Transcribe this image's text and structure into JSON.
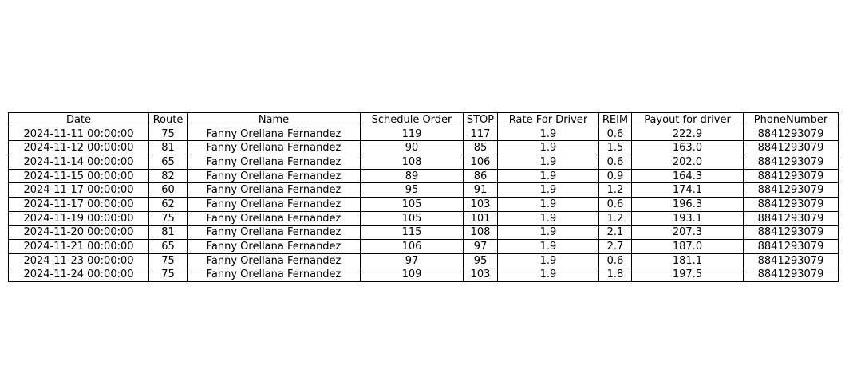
{
  "chart_data": {
    "type": "table",
    "columns": [
      "Date",
      "Route",
      "Name",
      "Schedule Order",
      "STOP",
      "Rate For Driver",
      "REIM",
      "Payout for driver",
      "PhoneNumber"
    ],
    "rows": [
      [
        "2024-11-11 00:00:00",
        "75",
        "Fanny Orellana Fernandez",
        "119",
        "117",
        "1.9",
        "0.6",
        "222.9",
        "8841293079"
      ],
      [
        "2024-11-12 00:00:00",
        "81",
        "Fanny Orellana Fernandez",
        "90",
        "85",
        "1.9",
        "1.5",
        "163.0",
        "8841293079"
      ],
      [
        "2024-11-14 00:00:00",
        "65",
        "Fanny Orellana Fernandez",
        "108",
        "106",
        "1.9",
        "0.6",
        "202.0",
        "8841293079"
      ],
      [
        "2024-11-15 00:00:00",
        "82",
        "Fanny Orellana Fernandez",
        "89",
        "86",
        "1.9",
        "0.9",
        "164.3",
        "8841293079"
      ],
      [
        "2024-11-17 00:00:00",
        "60",
        "Fanny Orellana Fernandez",
        "95",
        "91",
        "1.9",
        "1.2",
        "174.1",
        "8841293079"
      ],
      [
        "2024-11-17 00:00:00",
        "62",
        "Fanny Orellana Fernandez",
        "105",
        "103",
        "1.9",
        "0.6",
        "196.3",
        "8841293079"
      ],
      [
        "2024-11-19 00:00:00",
        "75",
        "Fanny Orellana Fernandez",
        "105",
        "101",
        "1.9",
        "1.2",
        "193.1",
        "8841293079"
      ],
      [
        "2024-11-20 00:00:00",
        "81",
        "Fanny Orellana Fernandez",
        "115",
        "108",
        "1.9",
        "2.1",
        "207.3",
        "8841293079"
      ],
      [
        "2024-11-21 00:00:00",
        "65",
        "Fanny Orellana Fernandez",
        "106",
        "97",
        "1.9",
        "2.7",
        "187.0",
        "8841293079"
      ],
      [
        "2024-11-23 00:00:00",
        "75",
        "Fanny Orellana Fernandez",
        "97",
        "95",
        "1.9",
        "0.6",
        "181.1",
        "8841293079"
      ],
      [
        "2024-11-24 00:00:00",
        "75",
        "Fanny Orellana Fernandez",
        "109",
        "103",
        "1.9",
        "1.8",
        "197.5",
        "8841293079"
      ]
    ]
  }
}
